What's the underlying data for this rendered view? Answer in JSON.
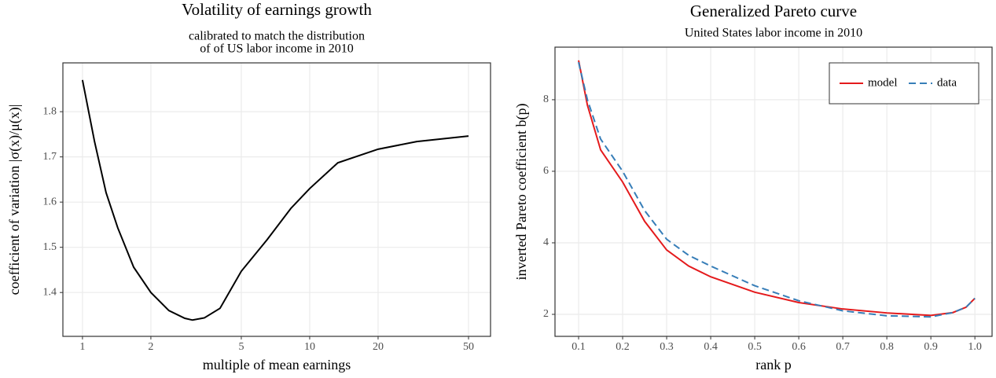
{
  "chart_data": [
    {
      "type": "line",
      "title": "Volatility of earnings growth",
      "subtitle": [
        "calibrated to match the distribution",
        "of of US labor income in 2010"
      ],
      "xlabel": "multiple of mean earnings",
      "ylabel": "coefficient of variation |σ(x)/μ(x)|",
      "xscale": "log",
      "grid": true,
      "x": [
        1,
        1.13,
        1.27,
        1.43,
        1.68,
        2,
        2.4,
        2.82,
        3.05,
        3.44,
        4.03,
        5,
        6.5,
        8.26,
        10,
        13.3,
        20,
        29.6,
        50
      ],
      "series": [
        {
          "name": null,
          "color": "#000000",
          "linestyle": "solid",
          "values": [
            1.87,
            1.734,
            1.621,
            1.543,
            1.456,
            1.4,
            1.36,
            1.343,
            1.339,
            1.344,
            1.365,
            1.447,
            1.517,
            1.586,
            1.63,
            1.687,
            1.717,
            1.734,
            1.746
          ]
        }
      ],
      "xlim": [
        0.82,
        62.5
      ],
      "xticks": [
        1,
        2,
        5,
        10,
        20,
        50
      ],
      "ylim": [
        1.303,
        1.908
      ],
      "yticks": [
        1.4,
        1.5,
        1.6,
        1.7,
        1.8
      ]
    },
    {
      "type": "line",
      "title": "Generalized Pareto curve",
      "subtitle": [
        "United States labor income in 2010"
      ],
      "xlabel": "rank p",
      "ylabel": "inverted Pareto coefficient b(p)",
      "grid": true,
      "legend": "top-right",
      "x": [
        0.1,
        0.12,
        0.15,
        0.2,
        0.25,
        0.3,
        0.35,
        0.4,
        0.5,
        0.6,
        0.7,
        0.8,
        0.9,
        0.95,
        0.98,
        1.0
      ],
      "series": [
        {
          "name": "model",
          "color": "#e41a1c",
          "linestyle": "solid",
          "values": [
            9.1,
            7.85,
            6.6,
            5.7,
            4.6,
            3.8,
            3.35,
            3.05,
            2.62,
            2.33,
            2.15,
            2.04,
            1.97,
            2.05,
            2.2,
            2.45
          ]
        },
        {
          "name": "data",
          "color": "#377eb8",
          "linestyle": "dashed",
          "values": [
            9.05,
            8.0,
            6.9,
            6.0,
            4.9,
            4.1,
            3.65,
            3.35,
            2.8,
            2.38,
            2.1,
            1.96,
            1.93,
            2.05,
            2.2,
            2.45
          ]
        }
      ],
      "xlim": [
        0.0464,
        1.039
      ],
      "xticks": [
        0.1,
        0.2,
        0.3,
        0.4,
        0.5,
        0.6,
        0.7,
        0.8,
        0.9,
        {
          "value": 1,
          "label": "1.0"
        }
      ],
      "ylim": [
        1.385,
        9.47
      ],
      "yticks": [
        2,
        4,
        6,
        8
      ]
    }
  ]
}
